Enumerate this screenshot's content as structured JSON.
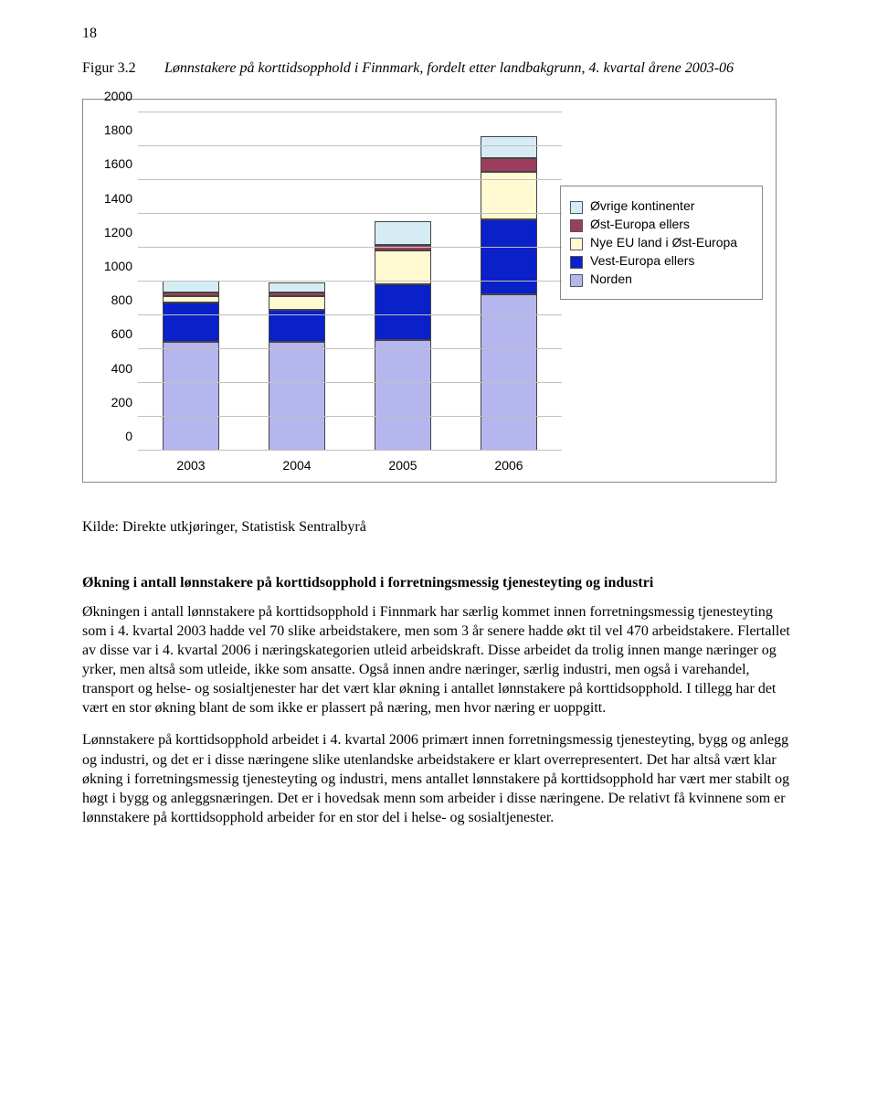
{
  "page_number": "18",
  "figure": {
    "label": "Figur 3.2",
    "caption": "Lønnstakere på korttidsopphold i Finnmark, fordelt etter landbakgrunn, 4. kvartal årene 2003-06"
  },
  "chart": {
    "type": "stacked-bar",
    "ylim": [
      0,
      2000
    ],
    "ytick_step": 200,
    "yticks": [
      "0",
      "200",
      "400",
      "600",
      "800",
      "1000",
      "1200",
      "1400",
      "1600",
      "1800",
      "2000"
    ],
    "categories": [
      "2003",
      "2004",
      "2005",
      "2006"
    ],
    "series": [
      {
        "name": "Øvrige kontinenter",
        "color": "#d6ecf5"
      },
      {
        "name": "Øst-Europa ellers",
        "color": "#9d3d5d"
      },
      {
        "name": "Nye EU land i Øst-Europa",
        "color": "#fffad1"
      },
      {
        "name": "Vest-Europa ellers",
        "color": "#0a20c8"
      },
      {
        "name": "Norden",
        "color": "#b6b6ee"
      }
    ],
    "stacks": [
      {
        "Norden": 640,
        "Vest-Europa ellers": 230,
        "Nye EU land i Øst-Europa": 40,
        "Øst-Europa ellers": 20,
        "Øvrige kontinenter": 70
      },
      {
        "Norden": 640,
        "Vest-Europa ellers": 190,
        "Nye EU land i Øst-Europa": 80,
        "Øst-Europa ellers": 20,
        "Øvrige kontinenter": 60
      },
      {
        "Norden": 650,
        "Vest-Europa ellers": 330,
        "Nye EU land i Øst-Europa": 200,
        "Øst-Europa ellers": 30,
        "Øvrige kontinenter": 140
      },
      {
        "Norden": 920,
        "Vest-Europa ellers": 440,
        "Nye EU land i Øst-Europa": 280,
        "Øst-Europa ellers": 80,
        "Øvrige kontinenter": 130
      }
    ],
    "grid_color": "#c0c0c0",
    "border_color": "#888888",
    "background_color": "#ffffff",
    "bar_border_color": "#444444",
    "font_family": "Arial",
    "axis_fontsize": 14
  },
  "source_line": "Kilde: Direkte utkjøringer, Statistisk Sentralbyrå",
  "subheading": "Økning i antall lønnstakere på korttidsopphold i forretningsmessig tjenesteyting og industri",
  "paragraphs": [
    "Økningen i antall lønnstakere på korttidsopphold i Finnmark har særlig kommet innen forretningsmessig tjenesteyting som i 4. kvartal 2003 hadde vel 70 slike arbeidstakere, men som 3 år senere hadde økt til vel 470 arbeidstakere. Flertallet av disse var i 4. kvartal 2006 i næringskategorien utleid arbeidskraft. Disse arbeidet da trolig innen mange næringer og yrker, men altså som utleide, ikke som ansatte. Også innen andre næringer, særlig industri, men også i varehandel, transport og helse- og sosialtjenester har det vært klar økning i antallet lønnstakere på korttidsopphold. I tillegg har det vært en stor økning blant de som ikke er plassert på næring, men hvor næring er uoppgitt.",
    "Lønnstakere på korttidsopphold arbeidet i 4. kvartal 2006 primært innen forretningsmessig tjenesteyting, bygg og anlegg og industri, og det er i disse næringene slike utenlandske arbeidstakere er klart overrepresentert. Det har altså vært klar økning i forretningsmessig tjenesteyting og industri, mens antallet lønnstakere på korttidsopphold har vært mer stabilt og høgt i bygg og anleggsnæringen. Det er i hovedsak menn som arbeider i disse næringene. De relativt få kvinnene som er lønnstakere på korttidsopphold arbeider for en stor del i helse- og sosialtjenester."
  ]
}
